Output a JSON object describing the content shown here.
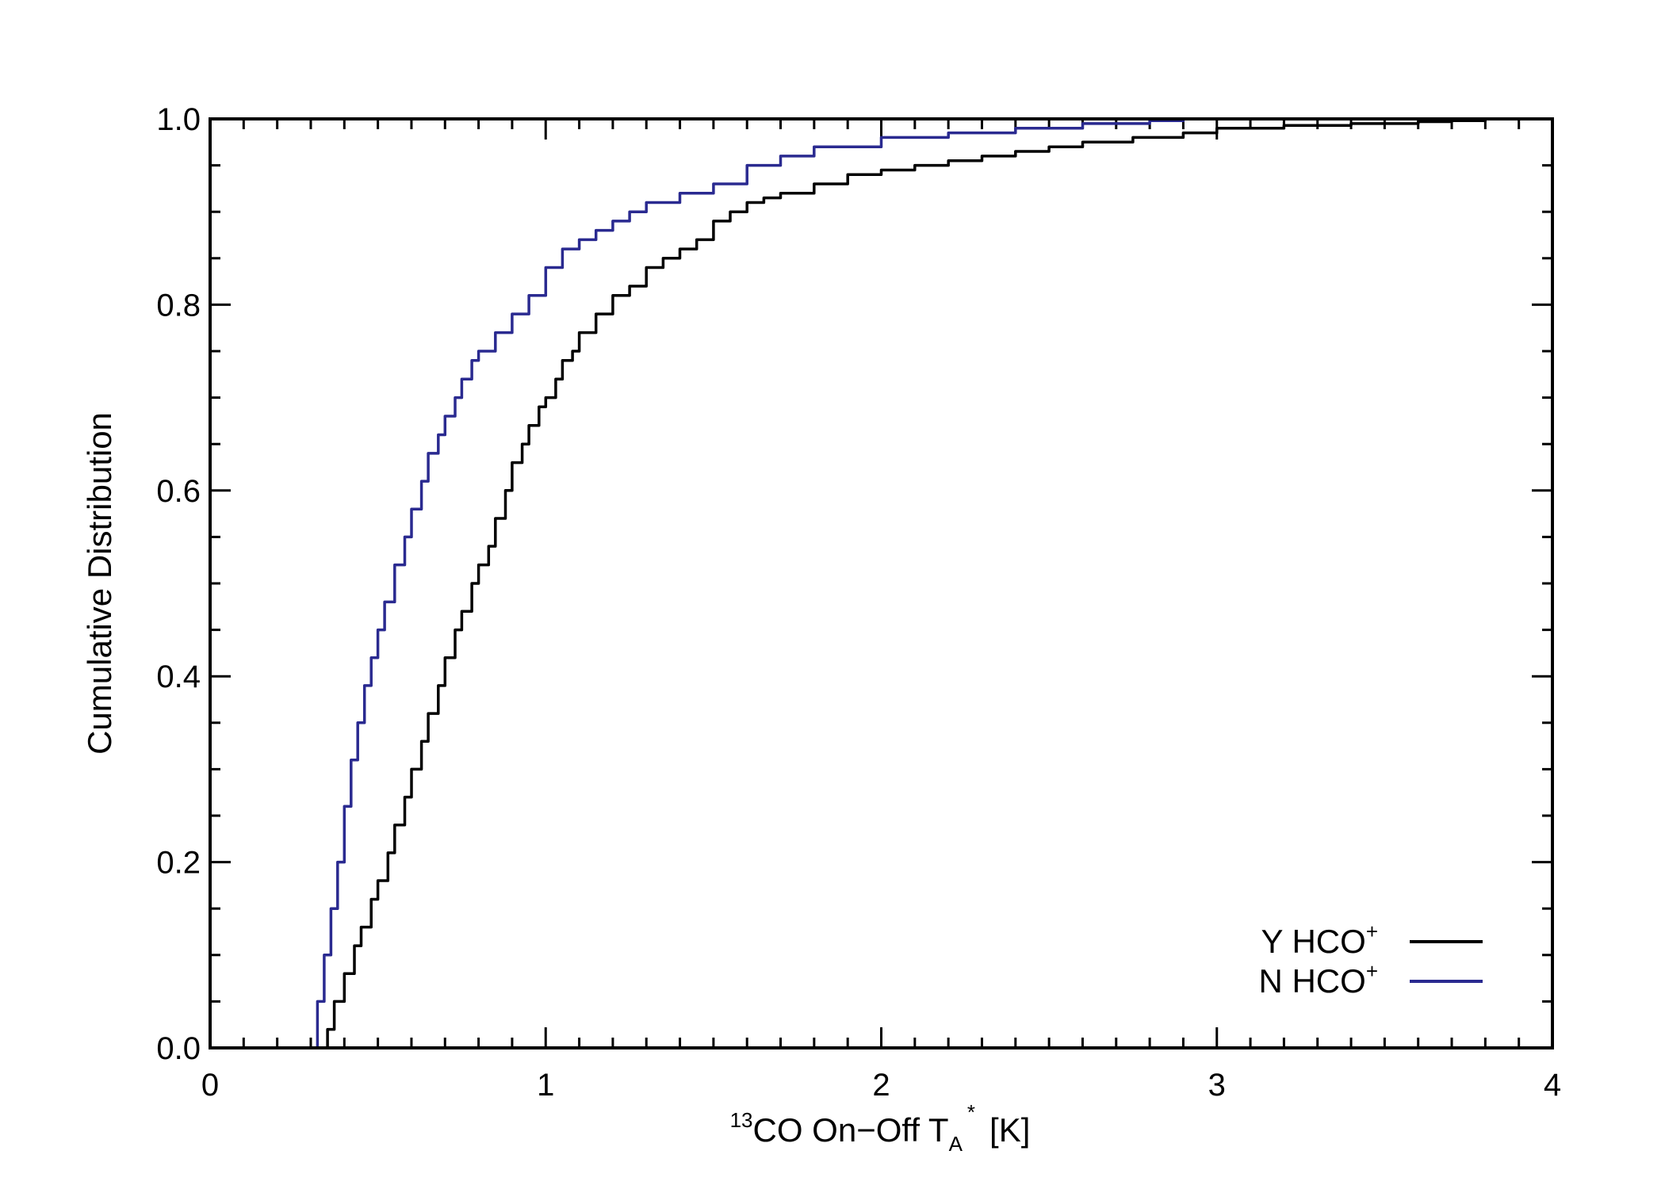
{
  "chart_data": {
    "type": "line",
    "title": "",
    "xlabel": {
      "sup": "13",
      "main": "CO On−Off T",
      "sub": "A",
      "star": "*",
      "unit": "[K]"
    },
    "ylabel": "Cumulative Distribution",
    "xlim": [
      0,
      4
    ],
    "ylim": [
      0,
      1
    ],
    "xticks": [
      0,
      1,
      2,
      3,
      4
    ],
    "xtick_labels": [
      "0",
      "1",
      "2",
      "3",
      "4"
    ],
    "yticks": [
      0,
      0.2,
      0.4,
      0.6,
      0.8,
      1.0
    ],
    "ytick_labels": [
      "0.0",
      "0.2",
      "0.4",
      "0.6",
      "0.8",
      "1.0"
    ],
    "grid": false,
    "legend_position": "bottom-right",
    "series": [
      {
        "name": "Y HCO",
        "name_sup": "+",
        "color": "#000000",
        "x": [
          0.3,
          0.35,
          0.37,
          0.4,
          0.43,
          0.45,
          0.48,
          0.5,
          0.53,
          0.55,
          0.58,
          0.6,
          0.63,
          0.65,
          0.68,
          0.7,
          0.73,
          0.75,
          0.78,
          0.8,
          0.83,
          0.85,
          0.88,
          0.9,
          0.93,
          0.95,
          0.98,
          1.0,
          1.03,
          1.05,
          1.08,
          1.1,
          1.15,
          1.2,
          1.25,
          1.3,
          1.35,
          1.4,
          1.45,
          1.5,
          1.55,
          1.6,
          1.65,
          1.7,
          1.8,
          1.9,
          2.0,
          2.1,
          2.2,
          2.3,
          2.4,
          2.5,
          2.6,
          2.75,
          2.9,
          3.0,
          3.2,
          3.4,
          3.6,
          3.7,
          3.8
        ],
        "y": [
          0.0,
          0.02,
          0.05,
          0.08,
          0.11,
          0.13,
          0.16,
          0.18,
          0.21,
          0.24,
          0.27,
          0.3,
          0.33,
          0.36,
          0.39,
          0.42,
          0.45,
          0.47,
          0.5,
          0.52,
          0.54,
          0.57,
          0.6,
          0.63,
          0.65,
          0.67,
          0.69,
          0.7,
          0.72,
          0.74,
          0.75,
          0.77,
          0.79,
          0.81,
          0.82,
          0.84,
          0.85,
          0.86,
          0.87,
          0.89,
          0.9,
          0.91,
          0.915,
          0.92,
          0.93,
          0.94,
          0.945,
          0.95,
          0.955,
          0.96,
          0.965,
          0.97,
          0.975,
          0.98,
          0.985,
          0.99,
          0.993,
          0.995,
          0.997,
          0.998,
          1.0
        ]
      },
      {
        "name": "N HCO",
        "name_sup": "+",
        "color": "#2a2a90",
        "x": [
          0.3,
          0.32,
          0.34,
          0.36,
          0.38,
          0.4,
          0.42,
          0.44,
          0.46,
          0.48,
          0.5,
          0.52,
          0.55,
          0.58,
          0.6,
          0.63,
          0.65,
          0.68,
          0.7,
          0.73,
          0.75,
          0.78,
          0.8,
          0.85,
          0.9,
          0.95,
          1.0,
          1.05,
          1.1,
          1.15,
          1.2,
          1.25,
          1.3,
          1.4,
          1.5,
          1.6,
          1.7,
          1.8,
          2.0,
          2.2,
          2.4,
          2.6,
          2.8,
          2.9
        ],
        "y": [
          0.0,
          0.05,
          0.1,
          0.15,
          0.2,
          0.26,
          0.31,
          0.35,
          0.39,
          0.42,
          0.45,
          0.48,
          0.52,
          0.55,
          0.58,
          0.61,
          0.64,
          0.66,
          0.68,
          0.7,
          0.72,
          0.74,
          0.75,
          0.77,
          0.79,
          0.81,
          0.84,
          0.86,
          0.87,
          0.88,
          0.89,
          0.9,
          0.91,
          0.92,
          0.93,
          0.95,
          0.96,
          0.97,
          0.98,
          0.985,
          0.99,
          0.995,
          0.998,
          1.0
        ]
      }
    ]
  }
}
